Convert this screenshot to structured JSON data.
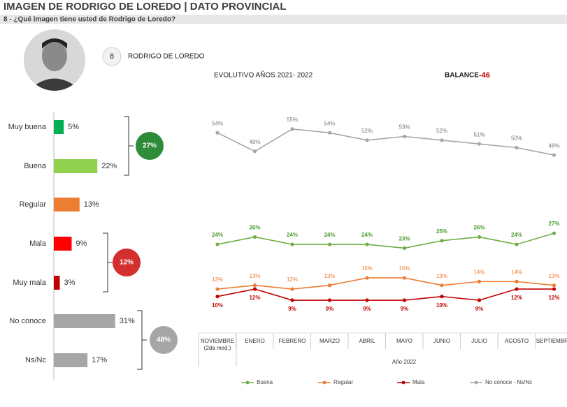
{
  "header": {
    "title": "IMAGEN DE RODRIGO DE LOREDO | DATO PROVINCIAL",
    "subtitle": "8 - ¿Qué imagen tiene usted de Rodrigo de Loredo?"
  },
  "profile": {
    "number": 8,
    "name": "RODRIGO DE LOREDO"
  },
  "chart_data": [
    {
      "type": "bar",
      "orientation": "horizontal",
      "categories": [
        "Muy buena",
        "Buena",
        "Regular",
        "Mala",
        "Muy mala",
        "No conoce",
        "Ns/Nc"
      ],
      "values": [
        5,
        22,
        13,
        9,
        3,
        31,
        17
      ],
      "value_labels": [
        "5%",
        "22%",
        "13%",
        "9%",
        "3%",
        "31%",
        "17%"
      ],
      "colors": [
        "#00b050",
        "#92d050",
        "#ed7d31",
        "#ff0000",
        "#c00000",
        "#a6a6a6",
        "#a6a6a6"
      ],
      "groups": [
        {
          "value": 27,
          "label": "27%",
          "color": "#2e8b3a"
        },
        {
          "value": 12,
          "label": "12%",
          "color": "#d32f2f"
        },
        {
          "value": 48,
          "label": "48%",
          "color": "#a6a6a6"
        }
      ]
    },
    {
      "type": "line",
      "title": "EVOLUTIVO AÑOS 2021- 2022",
      "balance_label": "BALANCE",
      "balance": -46,
      "balance_color": "#c00000",
      "x_label": "Año 2022",
      "categories": [
        "NOVIEMBRE (2da med.)",
        "ENERO",
        "FEBRERO",
        "MARZO",
        "ABRIL",
        "MAYO",
        "JUNIO",
        "JULIO",
        "AGOSTO",
        "SEPTIEMBRE"
      ],
      "series": [
        {
          "name": "Buena",
          "color": "#70ad47",
          "label_color": "#4a9a2a",
          "values": [
            24,
            26,
            24,
            24,
            24,
            23,
            25,
            26,
            24,
            27
          ],
          "value_labels": [
            "24%",
            "26%",
            "24%",
            "24%",
            "24%",
            "23%",
            "25%",
            "26%",
            "24%",
            "27%"
          ]
        },
        {
          "name": "Regular",
          "color": "#ed7d31",
          "label_color": "#ed7d31",
          "values": [
            12,
            13,
            12,
            13,
            15,
            15,
            13,
            14,
            14,
            13
          ],
          "value_labels": [
            "12%",
            "13%",
            "12%",
            "13%",
            "15%",
            "15%",
            "13%",
            "14%",
            "14%",
            "13%"
          ]
        },
        {
          "name": "Mala",
          "color": "#c00000",
          "label_color": "#c00000",
          "values": [
            10,
            12,
            9,
            9,
            9,
            9,
            10,
            9,
            12,
            12
          ],
          "value_labels": [
            "10%",
            "12%",
            "9%",
            "9%",
            "9%",
            "9%",
            "10%",
            "9%",
            "12%",
            "12%"
          ]
        },
        {
          "name": "No conoce - Ns/Nc",
          "color": "#a6a6a6",
          "label_color": "#777777",
          "values": [
            54,
            49,
            55,
            54,
            52,
            53,
            52,
            51,
            50,
            48
          ],
          "value_labels": [
            "54%",
            "49%",
            "55%",
            "54%",
            "52%",
            "53%",
            "52%",
            "51%",
            "50%",
            "48%"
          ]
        }
      ]
    }
  ]
}
